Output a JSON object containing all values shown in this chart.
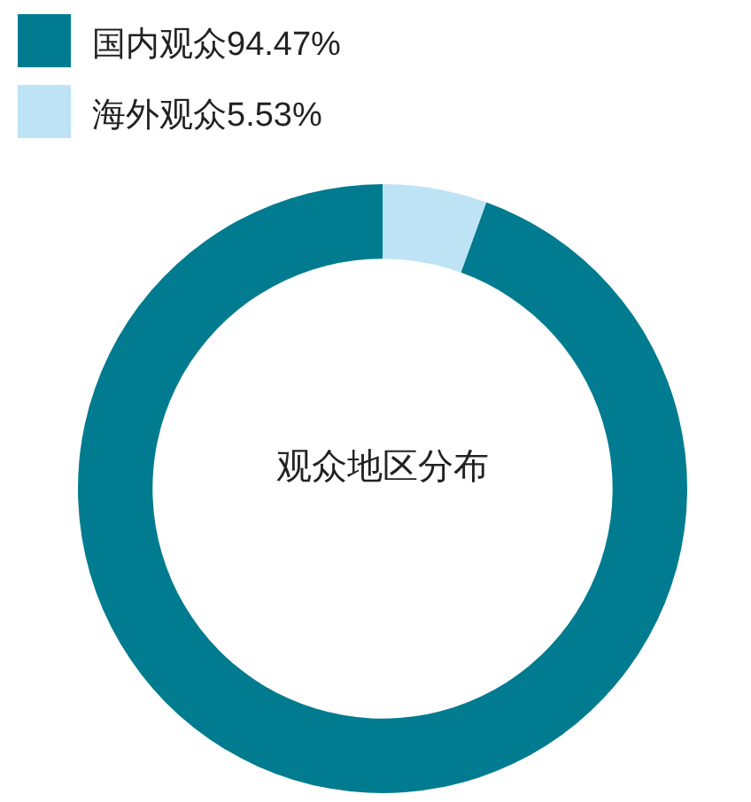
{
  "chart_data": {
    "type": "donut",
    "categories": [
      "国内观众",
      "海外观众"
    ],
    "values": [
      94.47,
      5.53
    ],
    "value_labels": [
      "94.47%",
      "5.53%"
    ],
    "colors": [
      "#007b8f",
      "#bde3f5"
    ],
    "legend": "top left",
    "annotations": [
      "观众地区分布"
    ]
  }
}
